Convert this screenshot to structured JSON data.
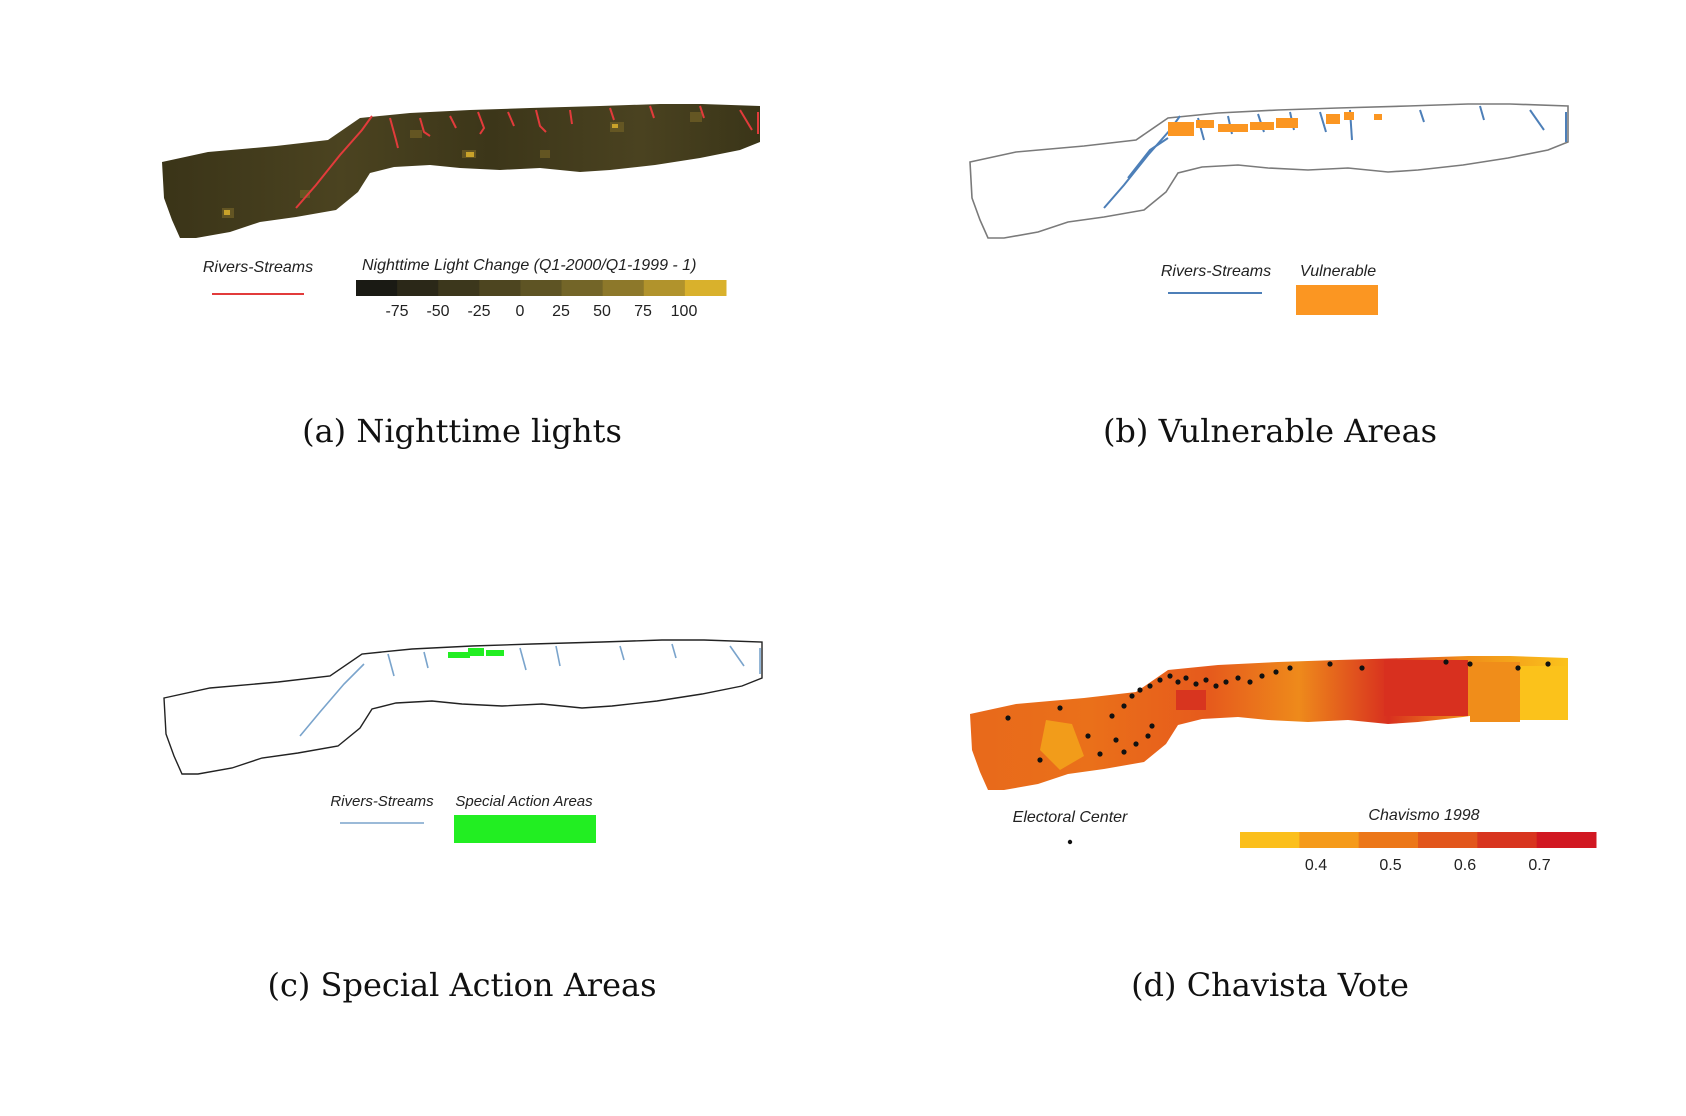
{
  "panels": {
    "a": {
      "caption": "(a) Nighttime lights",
      "legend_rivers": "Rivers-Streams",
      "legend_title": "Nighttime Light Change (Q1-2000/Q1-1999 - 1)",
      "ticks": [
        "-75",
        "-50",
        "-25",
        "0",
        "25",
        "50",
        "75",
        "100"
      ],
      "river_color": "#e23b3b",
      "colors": [
        "#1a1a14",
        "#2b2818",
        "#3c371c",
        "#4d4520",
        "#5e5424",
        "#736528",
        "#8d782a",
        "#b1932c",
        "#d9b12c"
      ]
    },
    "b": {
      "caption": "(b) Vulnerable Areas",
      "legend_rivers": "Rivers-Streams",
      "legend_vulnerable": "Vulnerable",
      "river_color": "#4d7fb8",
      "vulnerable_color": "#fb9622"
    },
    "c": {
      "caption": "(c) Special Action Areas",
      "legend_rivers": "Rivers-Streams",
      "legend_special": "Special Action Areas",
      "river_color": "#7aa4cc",
      "special_color": "#22ee22"
    },
    "d": {
      "caption": "(d) Chavista Vote",
      "legend_center": "Electoral Center",
      "legend_title": "Chavismo 1998",
      "ticks": [
        "0.4",
        "0.5",
        "0.6",
        "0.7"
      ],
      "colors": [
        "#fbbf1c",
        "#f59a1a",
        "#ec7719",
        "#e2561c",
        "#d8351f",
        "#d11822"
      ]
    }
  }
}
